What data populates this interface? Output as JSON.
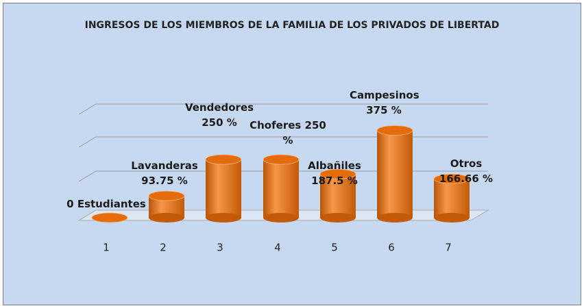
{
  "chart_data": {
    "type": "bar",
    "title": "INGRESOS DE LOS MIEMBROS DE LA FAMILIA DE LOS PRIVADOS DE LIBERTAD",
    "categories": [
      "1",
      "2",
      "3",
      "4",
      "5",
      "6",
      "7"
    ],
    "values": [
      0,
      93.75,
      250,
      250,
      187.5,
      375,
      166.66
    ],
    "value_labels": [
      "0 Estudiantes",
      "Lavanderas 93.75 %",
      "Vendedores 250 %",
      "Choferes 250 %",
      "Albañiles 187.5 %",
      "Campesinos 375 %",
      "Otros 166.66 %"
    ],
    "color": "#e46c0a",
    "ylim": [
      0,
      500
    ]
  }
}
